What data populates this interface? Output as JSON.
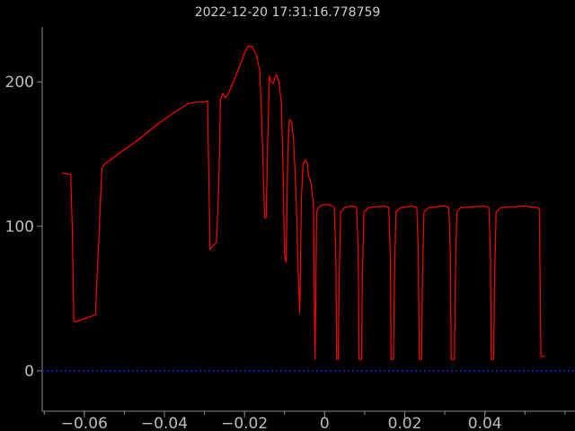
{
  "chart_data": {
    "type": "line",
    "title": "2022-12-20 17:31:16.778759",
    "xlabel": "",
    "ylabel": "",
    "xlim": [
      -0.0705,
      0.0625
    ],
    "ylim": [
      -28,
      238
    ],
    "x_ticks": [
      -0.06,
      -0.04,
      -0.02,
      0,
      0.02,
      0.04
    ],
    "x_tick_labels": [
      "−0.06",
      "−0.04",
      "−0.02",
      "0",
      "0.02",
      "0.04"
    ],
    "y_ticks": [
      0,
      100,
      200
    ],
    "y_tick_labels": [
      "0",
      "100",
      "200"
    ],
    "grid": false,
    "series": [
      {
        "color": "#ff0000",
        "points": [
          [
            -0.0656,
            137
          ],
          [
            -0.064,
            136
          ],
          [
            -0.0634,
            136
          ],
          [
            -0.063,
            100
          ],
          [
            -0.0626,
            34
          ],
          [
            -0.062,
            34
          ],
          [
            -0.06,
            36
          ],
          [
            -0.058,
            38
          ],
          [
            -0.0572,
            39
          ],
          [
            -0.0564,
            90
          ],
          [
            -0.0556,
            140
          ],
          [
            -0.055,
            143
          ],
          [
            -0.053,
            147
          ],
          [
            -0.05,
            153
          ],
          [
            -0.046,
            161
          ],
          [
            -0.042,
            170
          ],
          [
            -0.038,
            178
          ],
          [
            -0.034,
            185
          ],
          [
            -0.032,
            186
          ],
          [
            -0.03,
            186
          ],
          [
            -0.0292,
            187
          ],
          [
            -0.029,
            150
          ],
          [
            -0.0286,
            84
          ],
          [
            -0.028,
            86
          ],
          [
            -0.027,
            89
          ],
          [
            -0.0264,
            130
          ],
          [
            -0.026,
            188
          ],
          [
            -0.0254,
            192
          ],
          [
            -0.0248,
            189
          ],
          [
            -0.024,
            192
          ],
          [
            -0.022,
            205
          ],
          [
            -0.02,
            220
          ],
          [
            -0.019,
            225
          ],
          [
            -0.018,
            224
          ],
          [
            -0.017,
            218
          ],
          [
            -0.0162,
            208
          ],
          [
            -0.0156,
            165
          ],
          [
            -0.015,
            106
          ],
          [
            -0.0146,
            106
          ],
          [
            -0.0142,
            160
          ],
          [
            -0.0138,
            204
          ],
          [
            -0.0134,
            200
          ],
          [
            -0.0128,
            199
          ],
          [
            -0.0124,
            203
          ],
          [
            -0.012,
            205
          ],
          [
            -0.0114,
            200
          ],
          [
            -0.0108,
            185
          ],
          [
            -0.0104,
            140
          ],
          [
            -0.01,
            80
          ],
          [
            -0.0096,
            75
          ],
          [
            -0.0092,
            150
          ],
          [
            -0.0088,
            174
          ],
          [
            -0.0082,
            172
          ],
          [
            -0.0078,
            160
          ],
          [
            -0.0074,
            140
          ],
          [
            -0.007,
            110
          ],
          [
            -0.0066,
            68
          ],
          [
            -0.0062,
            40
          ],
          [
            -0.0058,
            120
          ],
          [
            -0.0054,
            143
          ],
          [
            -0.0048,
            146
          ],
          [
            -0.0044,
            144
          ],
          [
            -0.004,
            135
          ],
          [
            -0.0034,
            130
          ],
          [
            -0.0028,
            115
          ],
          [
            -0.0026,
            60
          ],
          [
            -0.0024,
            8
          ],
          [
            -0.0022,
            50
          ],
          [
            -0.002,
            110
          ],
          [
            -0.0016,
            113
          ],
          [
            -0.0004,
            115
          ],
          [
            0.001,
            115
          ],
          [
            0.002,
            114
          ],
          [
            0.0024,
            113
          ],
          [
            0.0028,
            80
          ],
          [
            0.003,
            8
          ],
          [
            0.0034,
            8
          ],
          [
            0.0036,
            60
          ],
          [
            0.004,
            110
          ],
          [
            0.005,
            113
          ],
          [
            0.007,
            114
          ],
          [
            0.008,
            113
          ],
          [
            0.0084,
            80
          ],
          [
            0.0086,
            8
          ],
          [
            0.0092,
            8
          ],
          [
            0.0094,
            60
          ],
          [
            0.0098,
            110
          ],
          [
            0.011,
            113
          ],
          [
            0.015,
            114
          ],
          [
            0.016,
            113
          ],
          [
            0.0164,
            80
          ],
          [
            0.0166,
            8
          ],
          [
            0.0172,
            8
          ],
          [
            0.0174,
            60
          ],
          [
            0.0178,
            110
          ],
          [
            0.019,
            113
          ],
          [
            0.022,
            114
          ],
          [
            0.023,
            113
          ],
          [
            0.0234,
            80
          ],
          [
            0.0236,
            8
          ],
          [
            0.0242,
            8
          ],
          [
            0.0244,
            60
          ],
          [
            0.0248,
            110
          ],
          [
            0.026,
            113
          ],
          [
            0.03,
            114
          ],
          [
            0.031,
            113
          ],
          [
            0.0314,
            80
          ],
          [
            0.0316,
            8
          ],
          [
            0.0324,
            8
          ],
          [
            0.0326,
            60
          ],
          [
            0.033,
            110
          ],
          [
            0.034,
            113
          ],
          [
            0.04,
            114
          ],
          [
            0.041,
            113
          ],
          [
            0.0414,
            80
          ],
          [
            0.0416,
            8
          ],
          [
            0.0422,
            8
          ],
          [
            0.0424,
            60
          ],
          [
            0.0428,
            110
          ],
          [
            0.044,
            113
          ],
          [
            0.05,
            114
          ],
          [
            0.053,
            113
          ],
          [
            0.0536,
            112
          ],
          [
            0.0538,
            60
          ],
          [
            0.054,
            10
          ],
          [
            0.055,
            10
          ]
        ]
      },
      {
        "color": "#1b1bb0",
        "style": "dotted",
        "points": [
          [
            -0.0705,
            0
          ],
          [
            0.0625,
            0
          ]
        ]
      }
    ]
  }
}
